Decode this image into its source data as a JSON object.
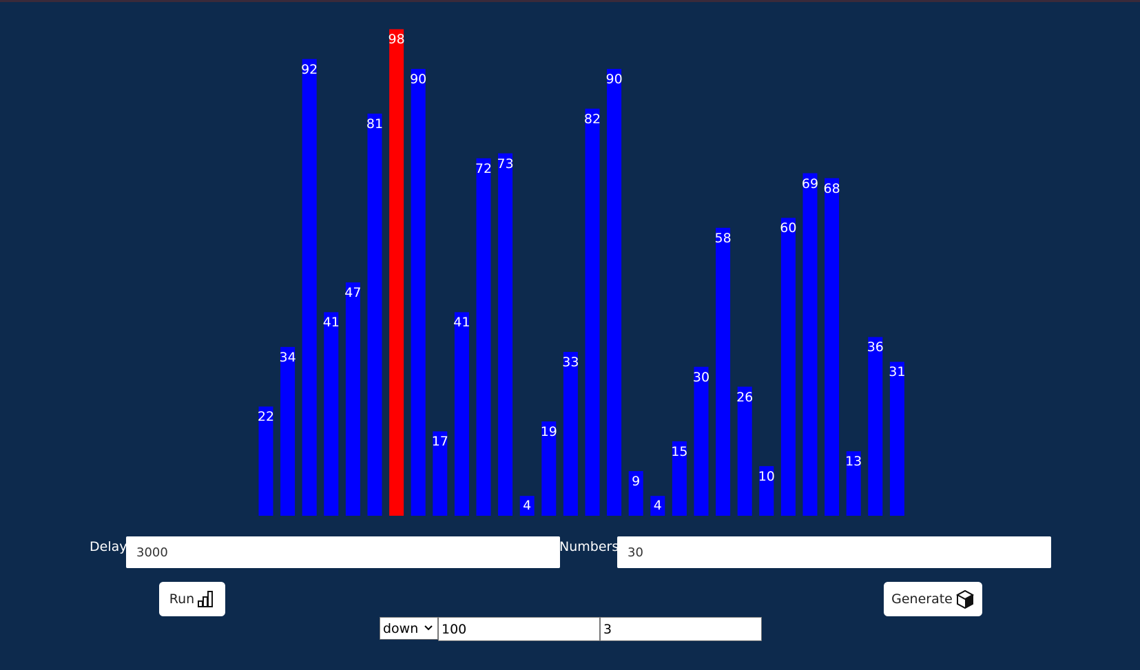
{
  "chart_data": {
    "type": "bar",
    "values": [
      22,
      34,
      92,
      41,
      47,
      81,
      98,
      90,
      17,
      41,
      72,
      73,
      4,
      19,
      33,
      82,
      90,
      9,
      4,
      15,
      30,
      58,
      26,
      10,
      60,
      69,
      68,
      13,
      36,
      31
    ],
    "highlight_index": 6,
    "bar_color": "#0000ff",
    "highlight_color": "#ff0000",
    "label_color": "#ffffff"
  },
  "controls": {
    "delay_label": "Delay:",
    "delay_value": "3000",
    "numbers_label": "Numbers:",
    "numbers_value": "30",
    "run_label": "Run",
    "run_icon": "bar-chart-icon",
    "generate_label": "Generate",
    "generate_icon": "cube-icon",
    "direction_selected": "down",
    "max_value": "100",
    "extra_value": "3"
  },
  "colors": {
    "background": "#0d2a4d",
    "button_bg": "#ffffff"
  }
}
